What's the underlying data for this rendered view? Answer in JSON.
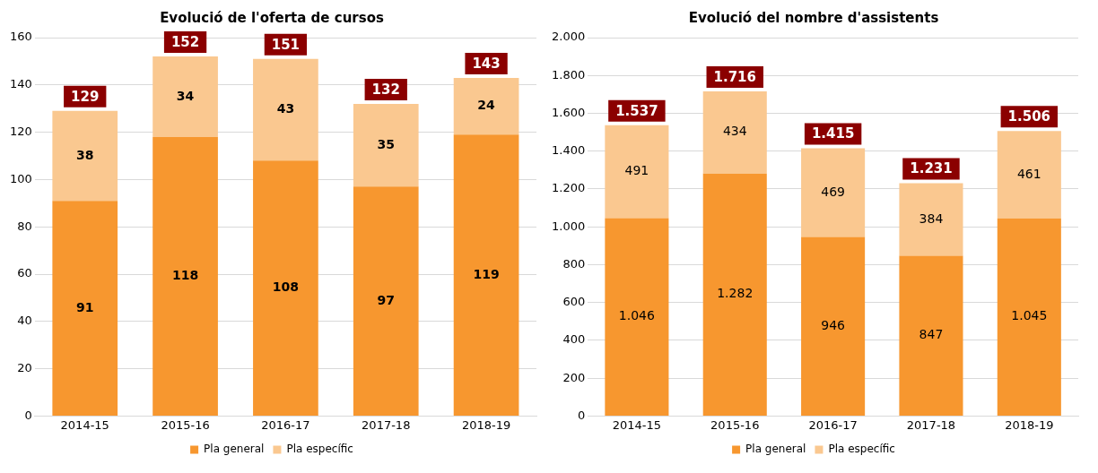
{
  "chart_data": [
    {
      "type": "bar",
      "title": "Evolució de l'oferta de cursos",
      "categories": [
        "2014-15",
        "2015-16",
        "2016-17",
        "2017-18",
        "2018-19"
      ],
      "stacked": true,
      "data_labels": true,
      "series": [
        {
          "name": "Pla general",
          "color": "#f7972f",
          "values": [
            91,
            118,
            108,
            97,
            119
          ]
        },
        {
          "name": "Pla específic",
          "color": "#fac890",
          "values": [
            38,
            34,
            43,
            35,
            24
          ]
        }
      ],
      "totals": [
        "129",
        "152",
        "151",
        "132",
        "143"
      ],
      "ylim": [
        0,
        160
      ],
      "yticks": [
        0,
        20,
        40,
        60,
        80,
        100,
        120,
        140,
        160
      ],
      "grid": "y",
      "legend": "bottom"
    },
    {
      "type": "bar",
      "title": "Evolució del nombre d'assistents",
      "categories": [
        "2014-15",
        "2015-16",
        "2016-17",
        "2017-18",
        "2018-19"
      ],
      "stacked": true,
      "series": [
        {
          "name": "Pla general",
          "color": "#f7972f",
          "values": [
            1046,
            1282,
            946,
            847,
            1045
          ],
          "value_labels": [
            "1.046",
            "1.282",
            "946",
            "847",
            "1.045"
          ]
        },
        {
          "name": "Pla específic",
          "color": "#fac890",
          "values": [
            491,
            434,
            469,
            384,
            461
          ],
          "value_labels": [
            "491",
            "434",
            "469",
            "384",
            "461"
          ]
        }
      ],
      "totals": [
        "1.537",
        "1.716",
        "1.415",
        "1.231",
        "1.506"
      ],
      "ylim": [
        0,
        2000
      ],
      "yticks": [
        {
          "value": 0,
          "label": "0"
        },
        {
          "value": 200,
          "label": "200"
        },
        {
          "value": 400,
          "label": "400"
        },
        {
          "value": 600,
          "label": "600"
        },
        {
          "value": 800,
          "label": "800"
        },
        {
          "value": 1000,
          "label": "1.000"
        },
        {
          "value": 1200,
          "label": "1.200"
        },
        {
          "value": 1400,
          "label": "1.400"
        },
        {
          "value": 1600,
          "label": "1.600"
        },
        {
          "value": 1800,
          "label": "1.800"
        },
        {
          "value": 2000,
          "label": "2.000"
        }
      ],
      "grid": "y",
      "legend": "bottom"
    }
  ]
}
